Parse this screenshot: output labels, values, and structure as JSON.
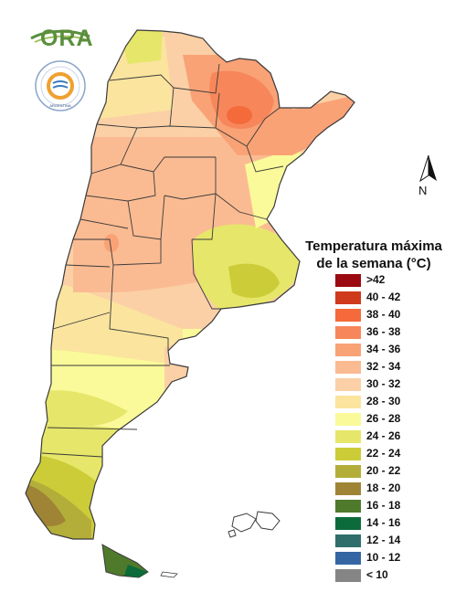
{
  "header": {
    "logo_text": "ORA",
    "seal_text": "ARGENTINA"
  },
  "legend": {
    "title_line1": "Temperatura máxima",
    "title_line2": "de la semana (°C)",
    "items": [
      {
        "label": ">42",
        "color": "#9b0a10"
      },
      {
        "label": "40 - 42",
        "color": "#cf3a1c"
      },
      {
        "label": "38 - 40",
        "color": "#f46a3a"
      },
      {
        "label": "36 - 38",
        "color": "#f7875a"
      },
      {
        "label": "34 - 36",
        "color": "#f9a276"
      },
      {
        "label": "32 - 34",
        "color": "#fbbb92"
      },
      {
        "label": "30 - 32",
        "color": "#fbd0a6"
      },
      {
        "label": "28 - 30",
        "color": "#fbe49e"
      },
      {
        "label": "26 - 28",
        "color": "#fafa9a"
      },
      {
        "label": "24 - 26",
        "color": "#e6e66a"
      },
      {
        "label": "22 - 24",
        "color": "#cccc38"
      },
      {
        "label": "20 - 22",
        "color": "#b3ae3a"
      },
      {
        "label": "18 - 20",
        "color": "#a08436"
      },
      {
        "label": "16 - 18",
        "color": "#4f7a2c"
      },
      {
        "label": "14 - 16",
        "color": "#0c6b3a"
      },
      {
        "label": "12 - 14",
        "color": "#2f6e6a"
      },
      {
        "label": "10 - 12",
        "color": "#3566a3"
      },
      {
        "label": "< 10",
        "color": "#858585"
      }
    ]
  },
  "north_arrow": {
    "label": "N"
  },
  "map_colors": {
    "border": "#3a3a3a",
    "north_region": "#f7875a",
    "center": "#fbbb92",
    "pampas": "#cccc38",
    "patagonia": "#fafa9a",
    "south": "#b3ae3a",
    "tierra_del_fuego": "#4f7a2c"
  }
}
